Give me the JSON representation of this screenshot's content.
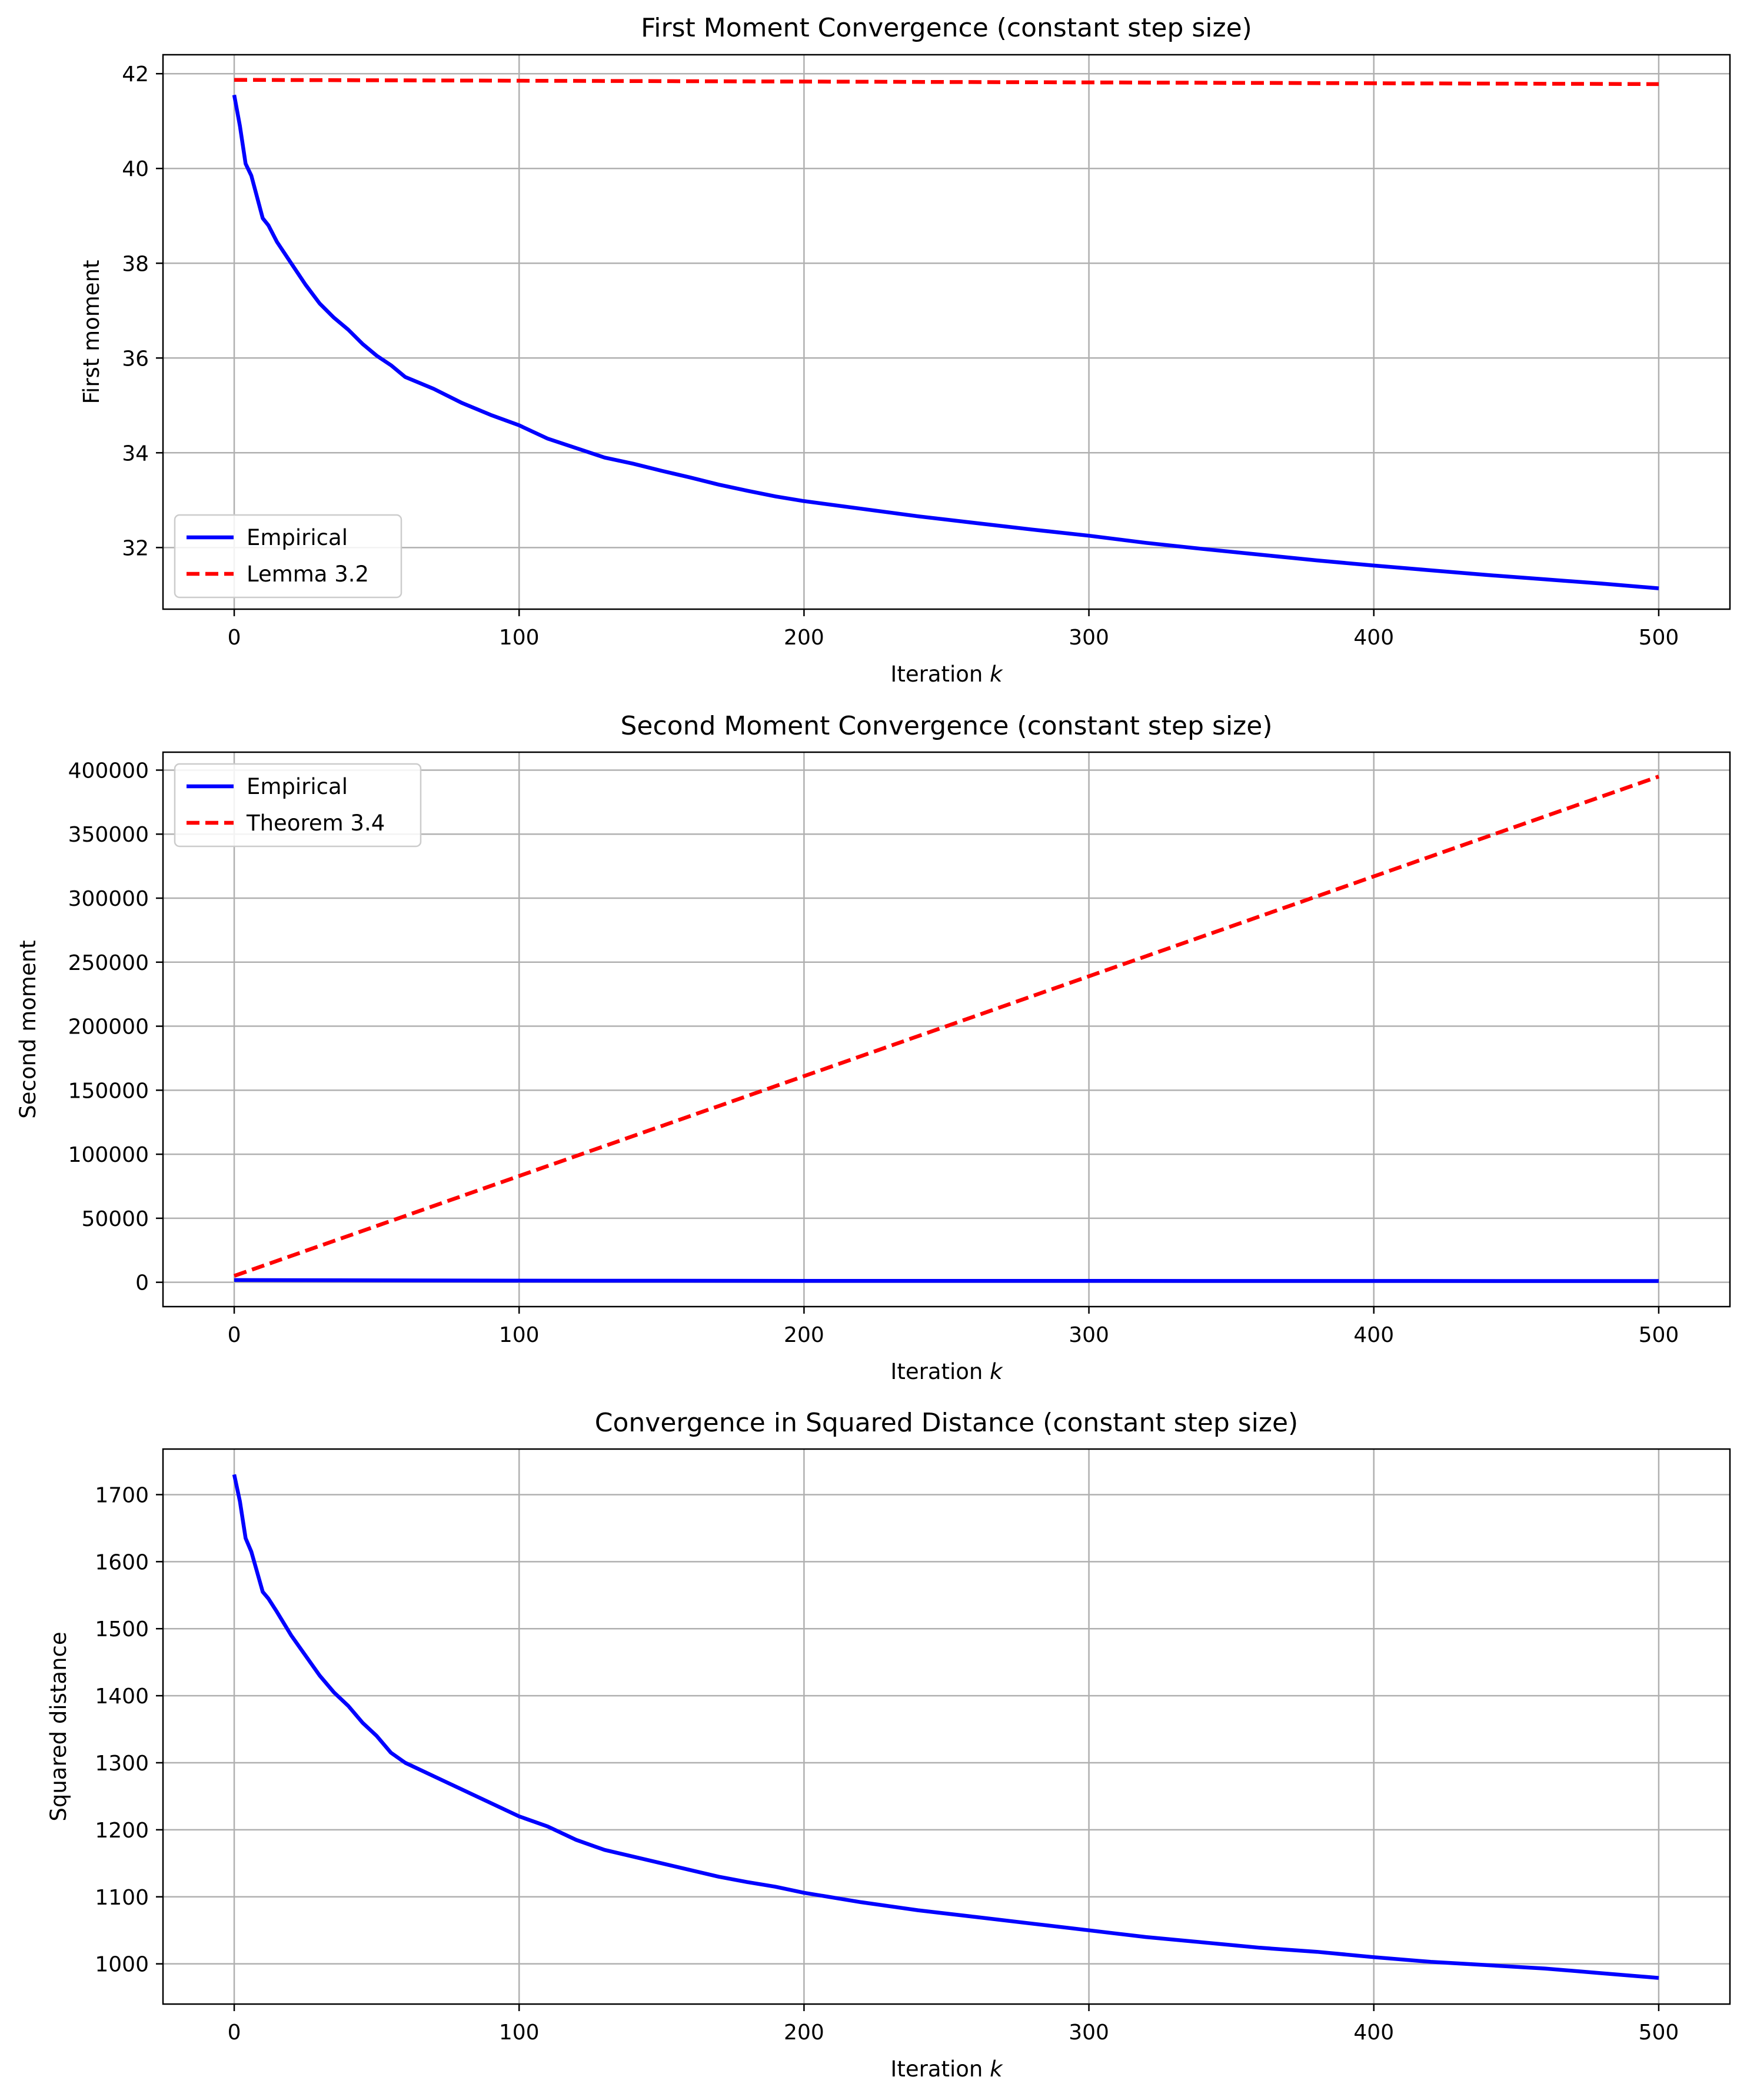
{
  "chart_data": [
    {
      "type": "line",
      "title": "First Moment Convergence (constant step size)",
      "xlabel": "Iteration k",
      "ylabel": "First moment",
      "xlim": [
        -25,
        525
      ],
      "ylim": [
        30.7,
        42.4
      ],
      "xticks": [
        0,
        100,
        200,
        300,
        400,
        500
      ],
      "yticks": [
        32,
        34,
        36,
        38,
        40,
        42
      ],
      "grid": true,
      "legend_position": "lower-left",
      "series": [
        {
          "name": "Empirical",
          "color": "#0000ff",
          "style": "solid",
          "x": [
            0,
            2,
            4,
            6,
            8,
            10,
            12,
            15,
            20,
            25,
            30,
            35,
            40,
            45,
            50,
            55,
            60,
            70,
            80,
            90,
            100,
            110,
            120,
            130,
            140,
            150,
            160,
            170,
            180,
            190,
            200,
            220,
            240,
            260,
            280,
            300,
            320,
            340,
            360,
            380,
            400,
            420,
            440,
            460,
            480,
            500
          ],
          "y": [
            41.55,
            40.9,
            40.1,
            39.85,
            39.4,
            38.95,
            38.8,
            38.45,
            38.0,
            37.55,
            37.15,
            36.85,
            36.6,
            36.3,
            36.05,
            35.85,
            35.6,
            35.35,
            35.05,
            34.8,
            34.58,
            34.3,
            34.1,
            33.9,
            33.77,
            33.62,
            33.48,
            33.33,
            33.2,
            33.08,
            32.98,
            32.82,
            32.66,
            32.52,
            32.38,
            32.25,
            32.1,
            31.97,
            31.85,
            31.73,
            31.62,
            31.52,
            31.42,
            31.33,
            31.24,
            31.14
          ]
        },
        {
          "name": "Lemma 3.2",
          "color": "#ff0000",
          "style": "dashed",
          "x": [
            0,
            500
          ],
          "y": [
            41.87,
            41.78
          ]
        }
      ]
    },
    {
      "type": "line",
      "title": "Second Moment Convergence (constant step size)",
      "xlabel": "Iteration k",
      "ylabel": "Second moment",
      "xlim": [
        -25,
        525
      ],
      "ylim": [
        -19000,
        414000
      ],
      "xticks": [
        0,
        100,
        200,
        300,
        400,
        500
      ],
      "yticks": [
        0,
        50000,
        100000,
        150000,
        200000,
        250000,
        300000,
        350000,
        400000
      ],
      "grid": true,
      "legend_position": "upper-left",
      "series": [
        {
          "name": "Empirical",
          "color": "#0000ff",
          "style": "solid",
          "x": [
            0,
            100,
            200,
            300,
            400,
            500
          ],
          "y": [
            1750,
            1250,
            1130,
            1070,
            1020,
            990
          ]
        },
        {
          "name": "Theorem 3.4",
          "color": "#ff0000",
          "style": "dashed",
          "x": [
            0,
            500
          ],
          "y": [
            5000,
            395000
          ]
        }
      ]
    },
    {
      "type": "line",
      "title": "Convergence in Squared Distance (constant step size)",
      "xlabel": "Iteration k",
      "ylabel": "Squared distance",
      "xlim": [
        -25,
        525
      ],
      "ylim": [
        940,
        1768
      ],
      "xticks": [
        0,
        100,
        200,
        300,
        400,
        500
      ],
      "yticks": [
        1000,
        1100,
        1200,
        1300,
        1400,
        1500,
        1600,
        1700
      ],
      "grid": true,
      "series": [
        {
          "name": "Empirical",
          "color": "#0000ff",
          "style": "solid",
          "x": [
            0,
            2,
            4,
            6,
            8,
            10,
            12,
            15,
            20,
            25,
            30,
            35,
            40,
            45,
            50,
            55,
            60,
            70,
            80,
            90,
            100,
            110,
            120,
            130,
            140,
            150,
            160,
            170,
            180,
            190,
            200,
            220,
            240,
            260,
            280,
            300,
            320,
            340,
            360,
            380,
            400,
            420,
            440,
            460,
            480,
            500
          ],
          "y": [
            1730,
            1690,
            1635,
            1615,
            1585,
            1555,
            1545,
            1525,
            1490,
            1460,
            1430,
            1405,
            1385,
            1360,
            1340,
            1315,
            1300,
            1280,
            1260,
            1240,
            1220,
            1205,
            1185,
            1170,
            1160,
            1150,
            1140,
            1130,
            1122,
            1115,
            1106,
            1092,
            1080,
            1070,
            1060,
            1050,
            1040,
            1032,
            1024,
            1018,
            1010,
            1003,
            998,
            993,
            986,
            979
          ]
        }
      ]
    }
  ]
}
